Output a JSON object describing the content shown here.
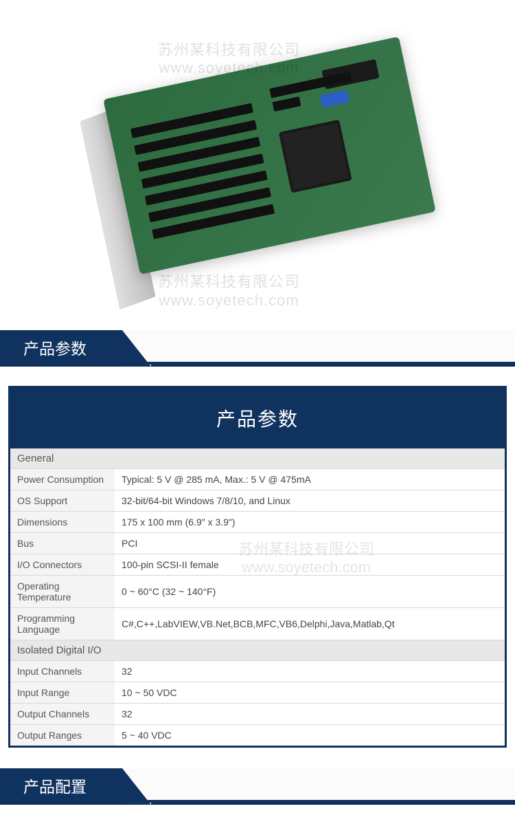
{
  "colors": {
    "header_bg": "#10325e",
    "header_text": "#ffffff",
    "panel_border": "#10325e",
    "group_bg": "#e8e8e8",
    "label_bg": "#f4f4f4",
    "row_border": "#d8d8d8",
    "text": "#444444"
  },
  "watermark": {
    "line1": "苏州某科技有限公司",
    "line2": "www.soyetech.com"
  },
  "section_headers": {
    "spec": "产品参数",
    "config": "产品配置"
  },
  "spec_panel": {
    "title": "产品参数",
    "groups": [
      {
        "name": "General",
        "rows": [
          {
            "label": "Power Consumption",
            "value": "Typical: 5 V @ 285 mA, Max.: 5 V @ 475mA"
          },
          {
            "label": "OS Support",
            "value": "32-bit/64-bit Windows 7/8/10, and Linux"
          },
          {
            "label": "Dimensions",
            "value": "175 x 100 mm (6.9\" x 3.9\")"
          },
          {
            "label": "Bus",
            "value": "PCI"
          },
          {
            "label": "I/O Connectors",
            "value": "100-pin SCSI-II female"
          },
          {
            "label": "Operating Temperature",
            "value": "0 ~ 60°C (32 ~ 140°F)"
          },
          {
            "label": "Programming Language",
            "value": "C#,C++,LabVIEW,VB.Net,BCB,MFC,VB6,Delphi,Java,Matlab,Qt"
          }
        ]
      },
      {
        "name": "Isolated Digital I/O",
        "rows": [
          {
            "label": "Input Channels",
            "value": "32"
          },
          {
            "label": "Input Range",
            "value": "10 ~ 50 VDC"
          },
          {
            "label": "Output Channels",
            "value": "32"
          },
          {
            "label": "Output Ranges",
            "value": "5 ~ 40 VDC"
          }
        ]
      }
    ]
  }
}
